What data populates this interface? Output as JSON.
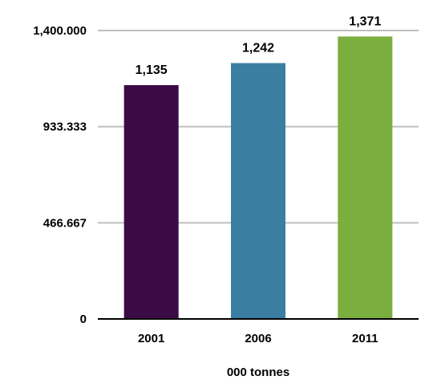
{
  "chart_data": {
    "type": "bar",
    "categories": [
      "2001",
      "2006",
      "2011"
    ],
    "values": [
      1135,
      1242,
      1371
    ],
    "value_labels": [
      "1,135",
      "1,242",
      "1,371"
    ],
    "bar_colors": [
      "#3b0b45",
      "#3a7fa2",
      "#7aae3e"
    ],
    "ylim": [
      0,
      1400
    ],
    "yticks": [
      0,
      466.667,
      933.333,
      1400
    ],
    "ytick_labels": [
      "0",
      "466.667",
      "933.333",
      "1,400.000"
    ],
    "xlabel": "000 tonnes",
    "ylabel": "",
    "title": "",
    "grid": true,
    "gridline_color": "#bfbfbf",
    "axis_color": "#000000"
  }
}
